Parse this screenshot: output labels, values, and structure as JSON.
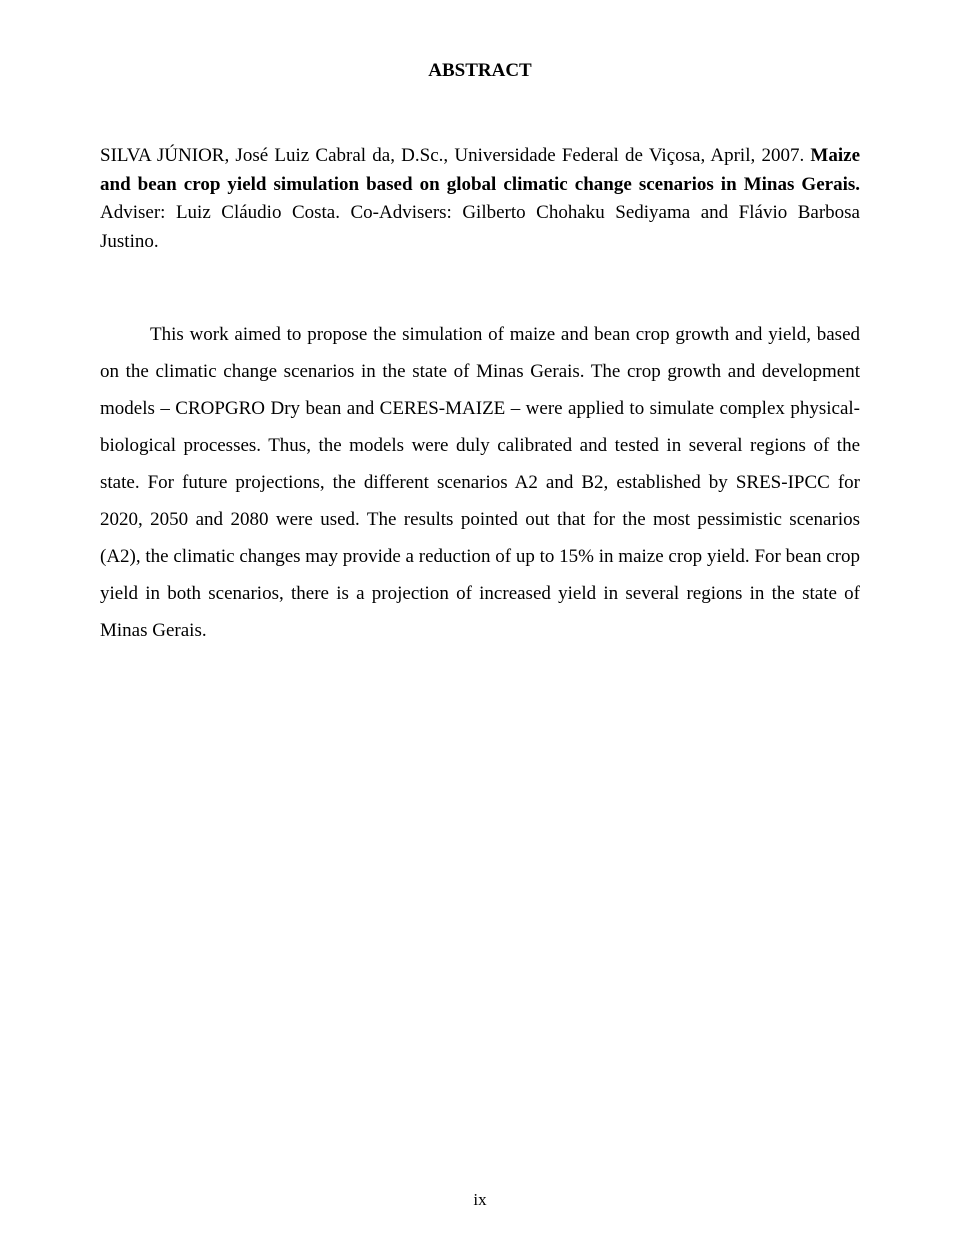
{
  "section_title": "ABSTRACT",
  "reference": {
    "author": "SILVA JÚNIOR, José Luiz Cabral da, D.Sc., Universidade Federal de Viçosa, April, 2007. ",
    "title": "Maize and bean crop yield simulation based on global climatic change scenarios in Minas Gerais.",
    "adviser": " Adviser: Luiz Cláudio Costa. Co-Advisers: Gilberto Chohaku Sediyama and Flávio Barbosa Justino."
  },
  "body": "This work aimed to propose the simulation of maize and bean crop growth and yield, based on the climatic change scenarios in the state of Minas Gerais. The crop growth and development models – CROPGRO Dry bean and CERES-MAIZE – were applied to simulate complex physical- biological processes. Thus, the models were duly calibrated and tested in several regions of the state. For future projections, the different scenarios A2 and B2, established by SRES-IPCC for  2020, 2050 and 2080 were used. The results pointed out that for the most pessimistic scenarios (A2), the climatic changes may provide a reduction of up to 15% in maize crop yield. For bean crop yield in both scenarios, there is a projection of increased yield in several regions in the state of Minas Gerais.",
  "page_number": "ix"
}
